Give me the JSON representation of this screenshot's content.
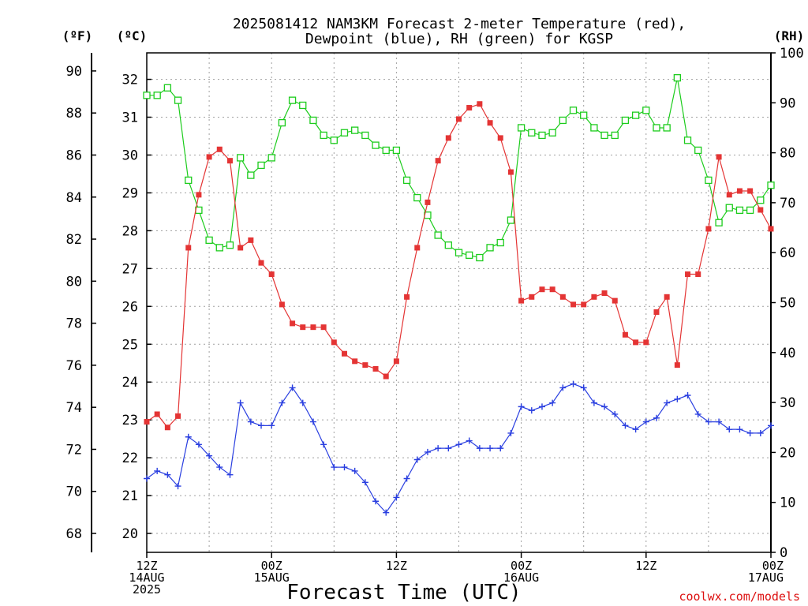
{
  "chart_data": {
    "type": "line",
    "title_line1": "2025081412 NAM3KM Forecast 2-meter Temperature (red),",
    "title_line2": "Dewpoint (blue), RH (green) for KGSP",
    "xlabel": "Forecast Time (UTC)",
    "credit": "coolwx.com/models",
    "unit_f": "(ºF)",
    "unit_c": "(ºC)",
    "unit_rh": "(RH)",
    "x_unit": "hours after 2025-08-14 12Z",
    "x_range": [
      0,
      60
    ],
    "c_range": [
      19.5,
      32.7
    ],
    "rh_range": [
      0,
      100
    ],
    "grid": true,
    "x_ticks": [
      {
        "x": 0,
        "line1": "12Z",
        "line2": "14AUG",
        "line3": "2025"
      },
      {
        "x": 12,
        "line1": "00Z",
        "line2": "15AUG",
        "line3": ""
      },
      {
        "x": 24,
        "line1": "12Z",
        "line2": "",
        "line3": ""
      },
      {
        "x": 36,
        "line1": "00Z",
        "line2": "16AUG",
        "line3": ""
      },
      {
        "x": 48,
        "line1": "12Z",
        "line2": "",
        "line3": ""
      },
      {
        "x": 60,
        "line1": "00Z",
        "line2": "17AUG",
        "line3": ""
      }
    ],
    "f_ticks": [
      "68",
      "70",
      "72",
      "74",
      "76",
      "78",
      "80",
      "82",
      "84",
      "86",
      "88",
      "90"
    ],
    "c_ticks": [
      "20",
      "21",
      "22",
      "23",
      "24",
      "25",
      "26",
      "27",
      "28",
      "29",
      "30",
      "31",
      "32"
    ],
    "rh_ticks": [
      "0",
      "10",
      "20",
      "30",
      "40",
      "50",
      "60",
      "70",
      "80",
      "90",
      "100"
    ],
    "colors": {
      "temperature": "#e43434",
      "dewpoint": "#2a3fe0",
      "rh": "#1ccc1c",
      "grid": "#a0a0a0"
    },
    "series": [
      {
        "key": "temperature",
        "axis": "c",
        "y": [
          22.95,
          23.15,
          22.8,
          23.1,
          27.55,
          28.95,
          29.95,
          30.15,
          29.85,
          27.55,
          27.75,
          27.15,
          26.85,
          26.05,
          25.55,
          25.45,
          25.45,
          25.45,
          25.05,
          24.75,
          24.55,
          24.45,
          24.35,
          24.15,
          24.55,
          26.25,
          27.55,
          28.75,
          29.85,
          30.45,
          30.95,
          31.25,
          31.35,
          30.85,
          30.45,
          29.55,
          26.15,
          26.25,
          26.45,
          26.45,
          26.25,
          26.05,
          26.05,
          26.25,
          26.35,
          26.15,
          25.25,
          25.05,
          25.05,
          25.85,
          26.25,
          24.45,
          26.85,
          26.85,
          28.05,
          29.95,
          28.95,
          29.05,
          29.05,
          28.55,
          28.05
        ]
      },
      {
        "key": "dewpoint",
        "axis": "c",
        "y": [
          21.45,
          21.65,
          21.55,
          21.25,
          22.55,
          22.35,
          22.05,
          21.75,
          21.55,
          23.45,
          22.95,
          22.85,
          22.85,
          23.45,
          23.85,
          23.45,
          22.95,
          22.35,
          21.75,
          21.75,
          21.65,
          21.35,
          20.85,
          20.55,
          20.95,
          21.45,
          21.95,
          22.15,
          22.25,
          22.25,
          22.35,
          22.45,
          22.25,
          22.25,
          22.25,
          22.65,
          23.35,
          23.25,
          23.35,
          23.45,
          23.85,
          23.95,
          23.85,
          23.45,
          23.35,
          23.15,
          22.85,
          22.75,
          22.95,
          23.05,
          23.45,
          23.55,
          23.65,
          23.15,
          22.95,
          22.95,
          22.75,
          22.75,
          22.65,
          22.65,
          22.85
        ]
      },
      {
        "key": "rh",
        "axis": "rh",
        "y": [
          91.5,
          91.5,
          93,
          90.5,
          74.5,
          68.5,
          62.5,
          61,
          61.5,
          79,
          75.5,
          77.5,
          79,
          86,
          90.5,
          89.5,
          86.5,
          83.5,
          82.5,
          84,
          84.5,
          83.5,
          81.5,
          80.5,
          80.5,
          74.5,
          71,
          67.5,
          63.5,
          61.5,
          60,
          59.5,
          59,
          61,
          62,
          66.5,
          85,
          84,
          83.5,
          84,
          86.5,
          88.5,
          87.5,
          85,
          83.5,
          83.5,
          86.5,
          87.5,
          88.5,
          85,
          85,
          95,
          82.5,
          80.5,
          74.5,
          66,
          69,
          68.5,
          68.5,
          70.5,
          73.5
        ]
      }
    ]
  }
}
